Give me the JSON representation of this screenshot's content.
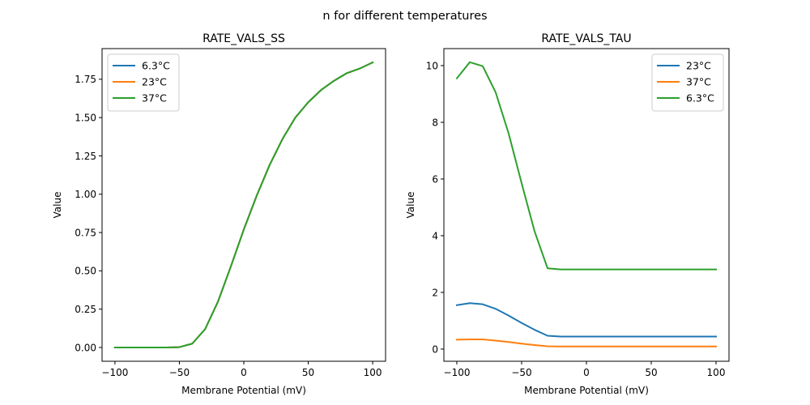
{
  "figure": {
    "suptitle": "n for different temperatures"
  },
  "chart_data": [
    {
      "type": "line",
      "title": "RATE_VALS_SS",
      "xlabel": "Membrane Potential (mV)",
      "ylabel": "Value",
      "xlim": [
        -110,
        110
      ],
      "ylim": [
        -0.09,
        1.95
      ],
      "xticks": [
        -100,
        -50,
        0,
        50,
        100
      ],
      "xtick_labels": [
        "−100",
        "−50",
        "0",
        "50",
        "100"
      ],
      "yticks": [
        0,
        0.25,
        0.5,
        0.75,
        1.0,
        1.25,
        1.5,
        1.75
      ],
      "ytick_labels": [
        "0.00",
        "0.25",
        "0.50",
        "0.75",
        "1.00",
        "1.25",
        "1.50",
        "1.75"
      ],
      "grid": false,
      "legend": "top-left",
      "x": [
        -100,
        -90,
        -80,
        -70,
        -60,
        -50,
        -40,
        -30,
        -20,
        -10,
        0,
        10,
        20,
        30,
        40,
        50,
        60,
        70,
        80,
        90,
        100
      ],
      "series": [
        {
          "name": "6.3°C",
          "color": "#1f77b4",
          "values": [
            0,
            0,
            0,
            0,
            0,
            0.002,
            0.025,
            0.12,
            0.3,
            0.53,
            0.77,
            0.99,
            1.19,
            1.36,
            1.5,
            1.6,
            1.68,
            1.74,
            1.79,
            1.82,
            1.86
          ]
        },
        {
          "name": "23°C",
          "color": "#ff7f0e",
          "values": [
            0,
            0,
            0,
            0,
            0,
            0.002,
            0.025,
            0.12,
            0.3,
            0.53,
            0.77,
            0.99,
            1.19,
            1.36,
            1.5,
            1.6,
            1.68,
            1.74,
            1.79,
            1.82,
            1.86
          ]
        },
        {
          "name": "37°C",
          "color": "#2ca02c",
          "values": [
            0,
            0,
            0,
            0,
            0,
            0.002,
            0.025,
            0.12,
            0.3,
            0.53,
            0.77,
            0.99,
            1.19,
            1.36,
            1.5,
            1.6,
            1.68,
            1.74,
            1.79,
            1.82,
            1.86
          ]
        }
      ]
    },
    {
      "type": "line",
      "title": "RATE_VALS_TAU",
      "xlabel": "Membrane Potential (mV)",
      "ylabel": "Value",
      "xlim": [
        -110,
        110
      ],
      "ylim": [
        -0.43,
        10.6
      ],
      "xticks": [
        -100,
        -50,
        0,
        50,
        100
      ],
      "xtick_labels": [
        "−100",
        "−50",
        "0",
        "50",
        "100"
      ],
      "yticks": [
        0,
        2,
        4,
        6,
        8,
        10
      ],
      "ytick_labels": [
        "0",
        "2",
        "4",
        "6",
        "8",
        "10"
      ],
      "grid": false,
      "legend": "top-right",
      "x": [
        -100,
        -90,
        -80,
        -70,
        -60,
        -50,
        -40,
        -30,
        -20,
        -10,
        0,
        10,
        20,
        30,
        40,
        50,
        60,
        70,
        80,
        90,
        100
      ],
      "series": [
        {
          "name": "23°C",
          "color": "#1f77b4",
          "values": [
            1.55,
            1.62,
            1.58,
            1.42,
            1.18,
            0.92,
            0.68,
            0.47,
            0.44,
            0.44,
            0.44,
            0.44,
            0.44,
            0.44,
            0.44,
            0.44,
            0.44,
            0.44,
            0.44,
            0.44,
            0.44
          ]
        },
        {
          "name": "37°C",
          "color": "#ff7f0e",
          "values": [
            0.33,
            0.34,
            0.34,
            0.3,
            0.25,
            0.19,
            0.14,
            0.1,
            0.09,
            0.09,
            0.09,
            0.09,
            0.09,
            0.09,
            0.09,
            0.09,
            0.09,
            0.09,
            0.09,
            0.09,
            0.09
          ]
        },
        {
          "name": "6.3°C",
          "color": "#2ca02c",
          "values": [
            9.55,
            10.12,
            9.98,
            9.05,
            7.6,
            5.85,
            4.15,
            2.85,
            2.81,
            2.81,
            2.81,
            2.81,
            2.81,
            2.81,
            2.81,
            2.81,
            2.81,
            2.81,
            2.81,
            2.81,
            2.81
          ]
        }
      ]
    }
  ]
}
